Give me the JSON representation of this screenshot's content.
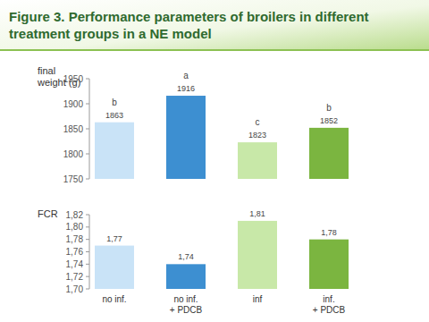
{
  "chart_data": [
    {
      "type": "bar",
      "title": "Figure 3. Performance parameters of broilers in different\ntreatment groups in a NE model",
      "ylabel": "final\nweight (g)",
      "categories": [
        "no inf.",
        "no inf.\n+ PDCB",
        "inf",
        "inf.\n+ PDCB"
      ],
      "values": [
        1863,
        1916,
        1823,
        1852
      ],
      "annotations": [
        "b",
        "a",
        "c",
        "b"
      ],
      "colors": [
        "#c9e3f7",
        "#3d8fd1",
        "#c8e8a8",
        "#7bb540"
      ],
      "ylim": [
        1750,
        1950
      ],
      "yticks": [
        1750,
        1800,
        1850,
        1900,
        1950
      ],
      "data_labels": true,
      "tick_labels": "y"
    },
    {
      "type": "bar",
      "ylabel": "FCR",
      "categories": [
        "no inf.",
        "no inf.\n+ PDCB",
        "inf",
        "inf.\n+ PDCB"
      ],
      "values": [
        1.77,
        1.74,
        1.81,
        1.78
      ],
      "value_labels": [
        "1,77",
        "1,74",
        "1,81",
        "1,78"
      ],
      "colors": [
        "#c9e3f7",
        "#3d8fd1",
        "#c8e8a8",
        "#7bb540"
      ],
      "ylim": [
        1.7,
        1.82
      ],
      "yticks": [
        {
          "value": 1.7,
          "label": "1,70"
        },
        {
          "value": 1.72,
          "label": "1,72"
        },
        {
          "value": 1.74,
          "label": "1,74"
        },
        {
          "value": 1.76,
          "label": "1,76"
        },
        {
          "value": 1.78,
          "label": "1,78"
        },
        {
          "value": 1.8,
          "label": "1,80"
        },
        {
          "value": 1.82,
          "label": "1,82"
        }
      ],
      "data_labels": true
    }
  ]
}
